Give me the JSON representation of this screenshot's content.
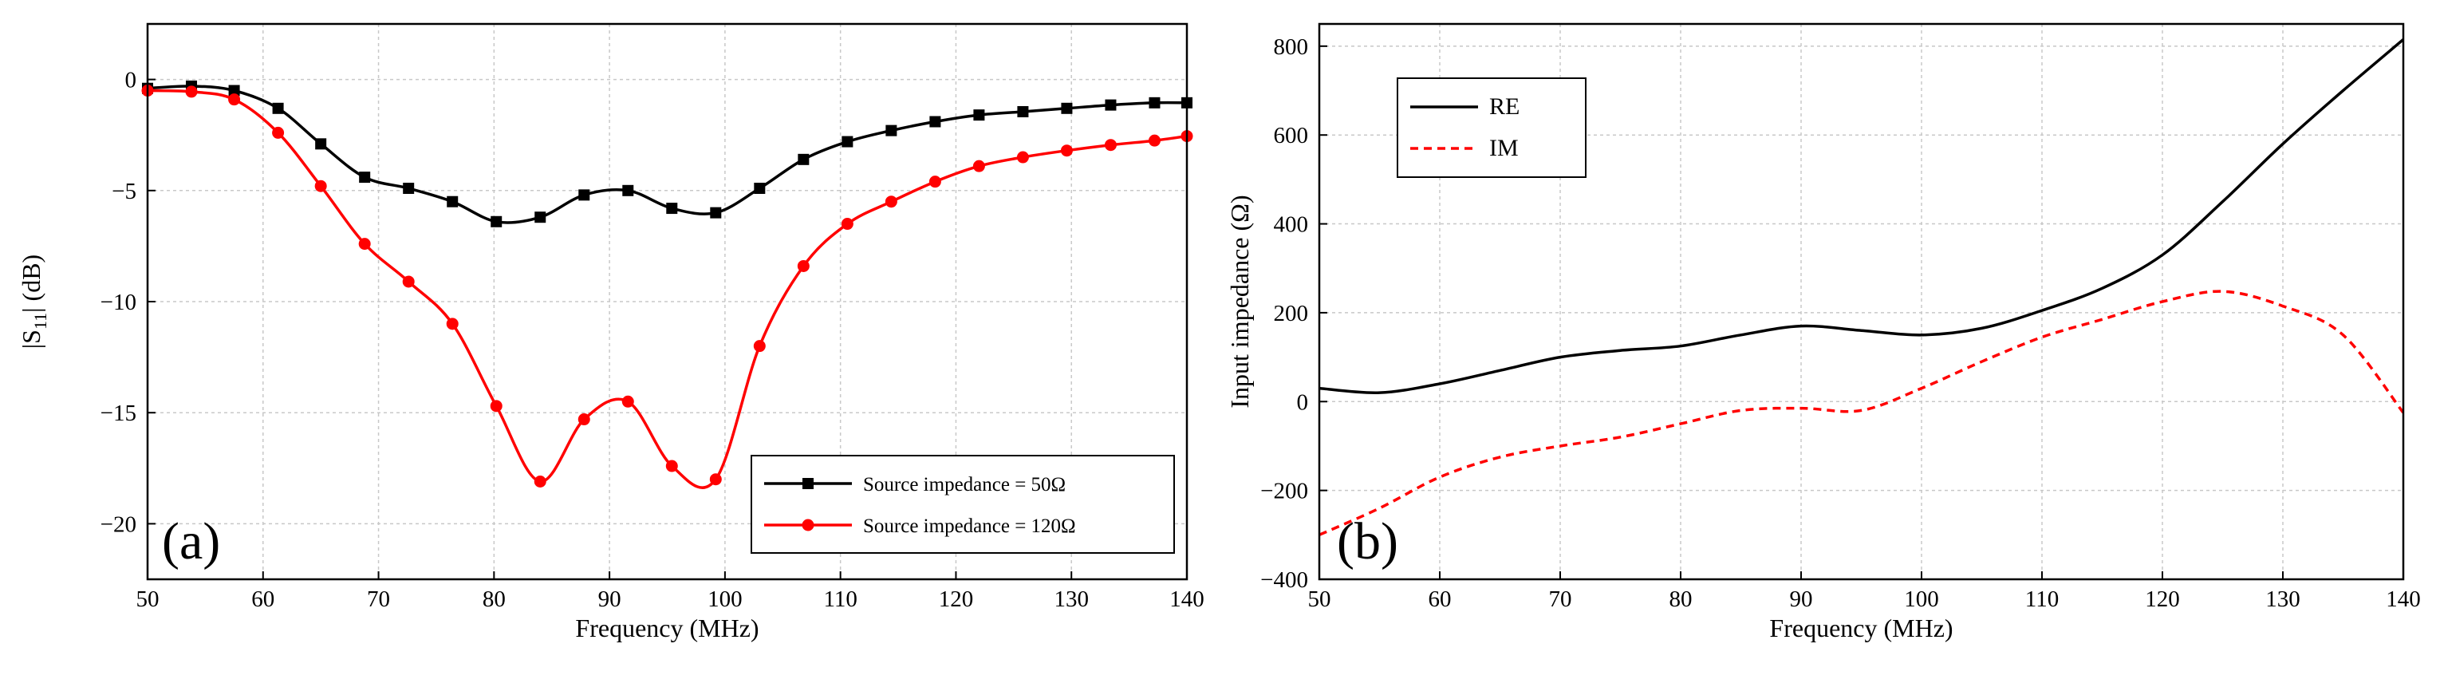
{
  "chart_data": [
    {
      "type": "line",
      "panel_label": "(a)",
      "xlabel": "Frequency (MHz)",
      "ylabel_main": "|S",
      "ylabel_sub": "11",
      "ylabel_tail": "| (dB)",
      "xlim": [
        50,
        140
      ],
      "ylim": [
        -22.5,
        2.5
      ],
      "xticks": [
        50,
        60,
        70,
        80,
        90,
        100,
        110,
        120,
        130,
        140
      ],
      "yticks": [
        0,
        -5,
        -10,
        -15,
        -20
      ],
      "grid": true,
      "legend_position": "bottom-right",
      "series": [
        {
          "name": "Source impedance = 50Ω",
          "color": "#000000",
          "marker": "square",
          "x": [
            50,
            53.8,
            57.5,
            61.3,
            65,
            68.8,
            72.6,
            76.4,
            80.2,
            84,
            87.8,
            91.6,
            95.4,
            99.2,
            103,
            106.8,
            110.6,
            114.4,
            118.2,
            122,
            125.8,
            129.6,
            133.4,
            137.2,
            140
          ],
          "y": [
            -0.4,
            -0.3,
            -0.5,
            -1.3,
            -2.9,
            -4.4,
            -4.9,
            -5.5,
            -6.4,
            -6.2,
            -5.2,
            -5.0,
            -5.8,
            -6.0,
            -4.9,
            -3.6,
            -2.8,
            -2.3,
            -1.9,
            -1.6,
            -1.45,
            -1.3,
            -1.15,
            -1.05,
            -1.05
          ]
        },
        {
          "name": "Source impedance = 120Ω",
          "color": "#ff0000",
          "marker": "circle",
          "x": [
            50,
            53.8,
            57.5,
            61.3,
            65,
            68.8,
            72.6,
            76.4,
            80.2,
            84,
            87.8,
            91.6,
            95.4,
            99.2,
            103,
            106.8,
            110.6,
            114.4,
            118.2,
            122,
            125.8,
            129.6,
            133.4,
            137.2,
            140
          ],
          "y": [
            -0.5,
            -0.55,
            -0.9,
            -2.4,
            -4.8,
            -7.4,
            -9.1,
            -11.0,
            -14.7,
            -18.1,
            -15.3,
            -14.5,
            -17.4,
            -18.0,
            -12.0,
            -8.4,
            -6.5,
            -5.5,
            -4.6,
            -3.9,
            -3.5,
            -3.2,
            -2.95,
            -2.75,
            -2.55
          ]
        }
      ]
    },
    {
      "type": "line",
      "panel_label": "(b)",
      "xlabel": "Frequency (MHz)",
      "ylabel": "Input impedance (Ω)",
      "xlim": [
        50,
        140
      ],
      "ylim": [
        -400,
        850
      ],
      "xticks": [
        50,
        60,
        70,
        80,
        90,
        100,
        110,
        120,
        130,
        140
      ],
      "yticks": [
        800,
        600,
        400,
        200,
        0,
        -200,
        -400
      ],
      "grid": true,
      "legend_position": "top-left",
      "series": [
        {
          "name": "RE",
          "color": "#000000",
          "dash": "solid",
          "x": [
            50,
            55,
            60,
            65,
            70,
            75,
            80,
            85,
            90,
            95,
            100,
            105,
            110,
            115,
            120,
            125,
            130,
            135,
            140
          ],
          "y": [
            30,
            20,
            40,
            70,
            100,
            115,
            125,
            150,
            170,
            160,
            150,
            165,
            205,
            255,
            330,
            450,
            580,
            700,
            815
          ]
        },
        {
          "name": "IM",
          "color": "#ff0000",
          "dash": "dashed",
          "x": [
            50,
            55,
            60,
            65,
            70,
            75,
            80,
            85,
            90,
            95,
            100,
            105,
            110,
            115,
            120,
            125,
            130,
            135,
            140
          ],
          "y": [
            -300,
            -240,
            -170,
            -125,
            -100,
            -80,
            -50,
            -20,
            -15,
            -20,
            30,
            90,
            145,
            185,
            225,
            248,
            215,
            150,
            -25
          ]
        }
      ]
    }
  ]
}
